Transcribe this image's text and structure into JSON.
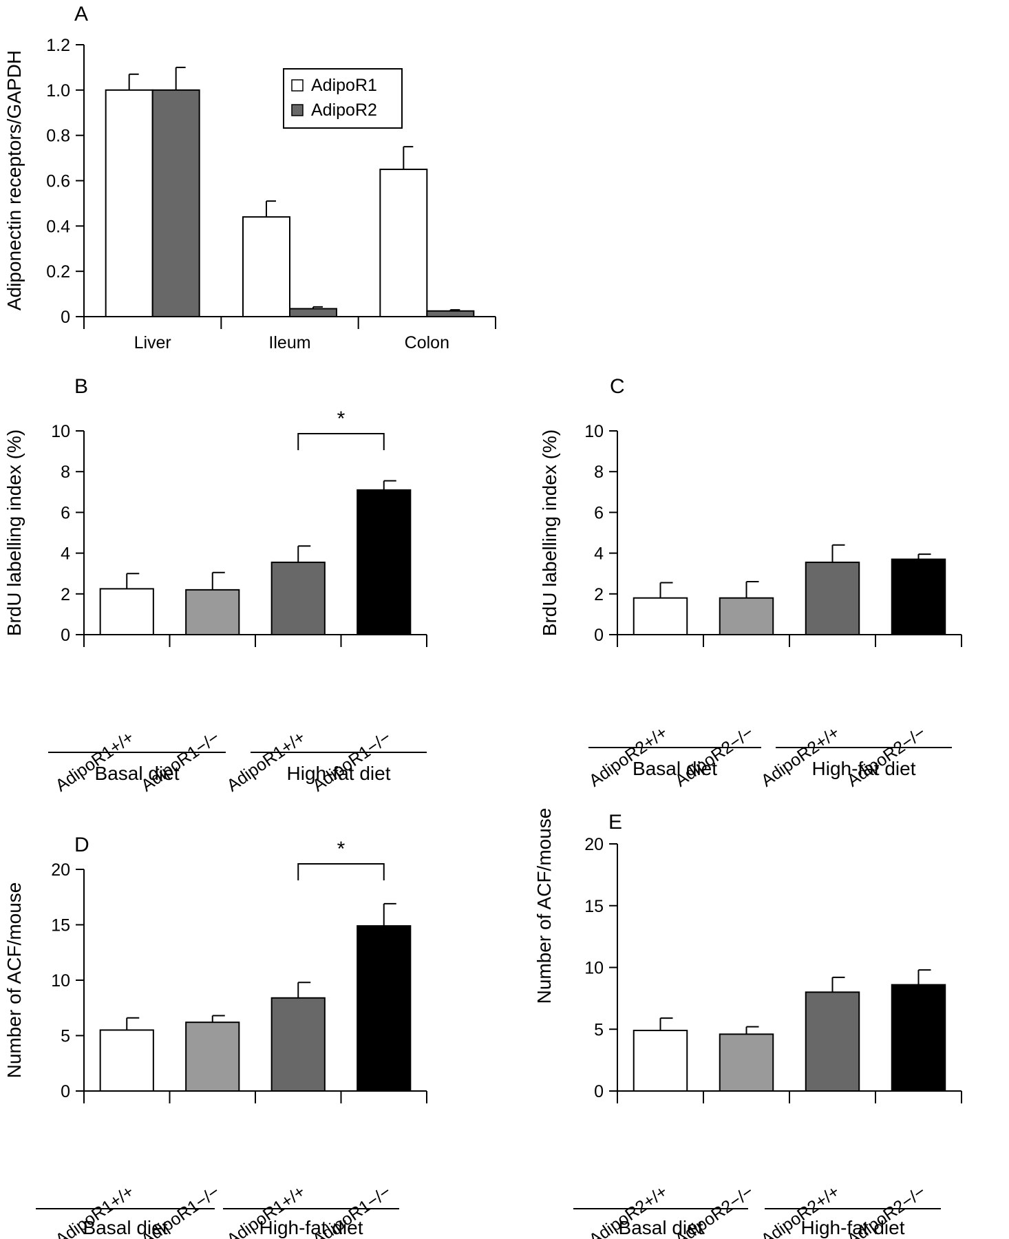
{
  "colors": {
    "white": "#ffffff",
    "light_gray": "#9a9a9a",
    "dark_gray": "#686868",
    "black": "#000000"
  },
  "chart_data": [
    {
      "panel": "A",
      "type": "bar",
      "ylabel": "Adiponectin receptors/GAPDH",
      "ylim": [
        0,
        1.2
      ],
      "yticks": [
        "0",
        "0.2",
        "0.4",
        "0.6",
        "0.8",
        "1.0",
        "1.2"
      ],
      "categories": [
        "Liver",
        "Ileum",
        "Colon"
      ],
      "series": [
        {
          "name": "AdipoR1",
          "color": "#ffffff",
          "values": [
            1.0,
            0.44,
            0.65
          ],
          "errors": [
            0.07,
            0.07,
            0.1
          ]
        },
        {
          "name": "AdipoR2",
          "color": "#686868",
          "values": [
            1.0,
            0.035,
            0.025
          ],
          "errors": [
            0.1,
            0.008,
            0.005
          ]
        }
      ],
      "legend": "top-right"
    },
    {
      "panel": "B",
      "type": "bar",
      "ylabel": "BrdU labelling index (%)",
      "ylim": [
        0,
        10
      ],
      "yticks": [
        "0",
        "2",
        "4",
        "6",
        "8",
        "10"
      ],
      "categories": [
        "AdipoR1+/+",
        "AdipoR1−/−",
        "AdipoR1+/+",
        "AdipoR1−/−"
      ],
      "values": [
        2.25,
        2.2,
        3.55,
        7.1
      ],
      "errors": [
        0.75,
        0.85,
        0.8,
        0.45
      ],
      "colors": [
        "#ffffff",
        "#9a9a9a",
        "#686868",
        "#000000"
      ],
      "groups": [
        "Basal diet",
        "High-fat diet"
      ],
      "significance": {
        "from": 2,
        "to": 3,
        "label": "*"
      }
    },
    {
      "panel": "C",
      "type": "bar",
      "ylabel": "BrdU labelling index (%)",
      "ylim": [
        0,
        10
      ],
      "yticks": [
        "0",
        "2",
        "4",
        "6",
        "8",
        "10"
      ],
      "categories": [
        "AdipoR2+/+",
        "AdipoR2−/−",
        "AdipoR2+/+",
        "AdipoR2−/−"
      ],
      "values": [
        1.8,
        1.8,
        3.55,
        3.7
      ],
      "errors": [
        0.75,
        0.8,
        0.85,
        0.25
      ],
      "colors": [
        "#ffffff",
        "#9a9a9a",
        "#686868",
        "#000000"
      ],
      "groups": [
        "Basal diet",
        "High-fat diet"
      ]
    },
    {
      "panel": "D",
      "type": "bar",
      "ylabel": "Number of ACF/mouse",
      "ylim": [
        0,
        20
      ],
      "yticks": [
        "0",
        "5",
        "10",
        "15",
        "20"
      ],
      "categories": [
        "AdipoR1+/+",
        "AdipoR1−/−",
        "AdipoR1+/+",
        "AdipoR1−/−"
      ],
      "values": [
        5.5,
        6.2,
        8.4,
        14.9
      ],
      "errors": [
        1.1,
        0.6,
        1.4,
        2.0
      ],
      "colors": [
        "#ffffff",
        "#9a9a9a",
        "#686868",
        "#000000"
      ],
      "groups": [
        "Basal diet",
        "High-fat diet"
      ],
      "significance": {
        "from": 2,
        "to": 3,
        "label": "*"
      }
    },
    {
      "panel": "E",
      "type": "bar",
      "ylabel": "Number of ACF/mouse",
      "ylim": [
        0,
        20
      ],
      "yticks": [
        "0",
        "5",
        "10",
        "15",
        "20"
      ],
      "categories": [
        "AdipoR2+/+",
        "AdipoR2−/−",
        "AdipoR2+/+",
        "AdipoR2−/−"
      ],
      "values": [
        4.9,
        4.6,
        8.0,
        8.6
      ],
      "errors": [
        1.0,
        0.6,
        1.2,
        1.2
      ],
      "colors": [
        "#ffffff",
        "#9a9a9a",
        "#686868",
        "#000000"
      ],
      "groups": [
        "Basal diet",
        "High-fat diet"
      ]
    }
  ]
}
